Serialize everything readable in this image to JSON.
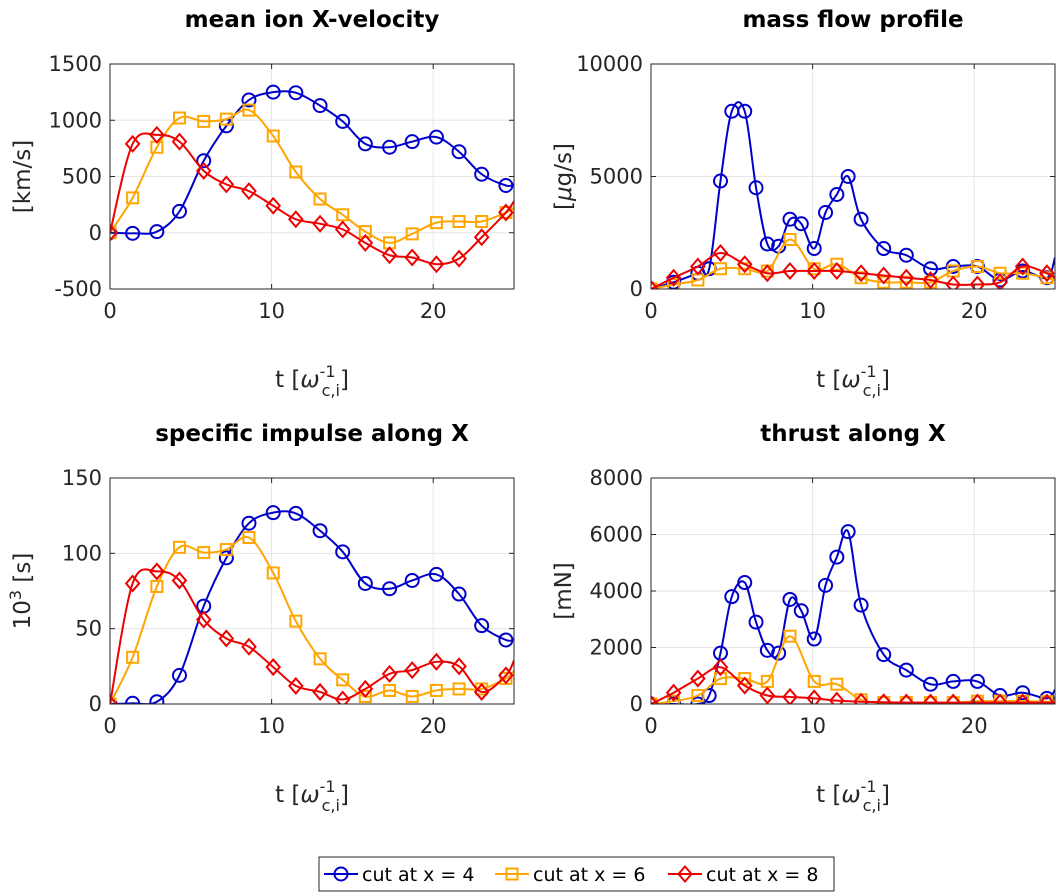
{
  "chart_data": [
    {
      "type": "line",
      "title": "mean ion X-velocity",
      "xlabel": "t [ω₋₁c,i]",
      "xlabel_parts": {
        "main": "t [",
        "symbol": "ω",
        "sup": "-1",
        "sub": "c,i",
        "close": "]"
      },
      "ylabel": "[km/s]",
      "xlim": [
        0,
        25
      ],
      "ylim": [
        -500,
        1500
      ],
      "xticks": [
        0,
        10,
        20
      ],
      "xtick_labels": [
        "0",
        "10",
        "20"
      ],
      "yticks": [
        -500,
        0,
        500,
        1000,
        1500
      ],
      "ytick_labels": [
        "-500",
        "0",
        "500",
        "1000",
        "1500"
      ],
      "grid": true,
      "series": [
        {
          "name": "cut at x = 4",
          "color": "#0000cc",
          "marker": "circle",
          "x": [
            0,
            1.4,
            2.9,
            4.3,
            5.8,
            7.2,
            8.6,
            10.1,
            11.5,
            13.0,
            14.4,
            15.8,
            17.3,
            18.7,
            20.2,
            21.6,
            23.0,
            24.5,
            25
          ],
          "y": [
            0,
            -5,
            10,
            190,
            640,
            950,
            1180,
            1250,
            1245,
            1130,
            990,
            790,
            760,
            810,
            850,
            720,
            520,
            420,
            430
          ]
        },
        {
          "name": "cut at x = 6",
          "color": "#ffa500",
          "marker": "square",
          "x": [
            0,
            1.4,
            2.9,
            4.3,
            5.8,
            7.2,
            8.6,
            10.1,
            11.5,
            13.0,
            14.4,
            15.8,
            17.3,
            18.7,
            20.2,
            21.6,
            23.0,
            24.5,
            25
          ],
          "y": [
            0,
            310,
            760,
            1020,
            990,
            1010,
            1090,
            860,
            540,
            300,
            160,
            10,
            -90,
            -10,
            90,
            100,
            100,
            180,
            220
          ]
        },
        {
          "name": "cut at x = 8",
          "color": "#ee0000",
          "marker": "diamond",
          "x": [
            0,
            1.4,
            2.9,
            4.3,
            5.8,
            7.2,
            8.6,
            10.1,
            11.5,
            13.0,
            14.4,
            15.8,
            17.3,
            18.7,
            20.2,
            21.6,
            23.0,
            24.5,
            25
          ],
          "y": [
            0,
            790,
            870,
            810,
            550,
            430,
            370,
            240,
            120,
            80,
            30,
            -90,
            -200,
            -220,
            -280,
            -230,
            -40,
            180,
            280
          ]
        }
      ]
    },
    {
      "type": "line",
      "title": "mass flow profile",
      "ylabel": "[μg/s]",
      "ylabel_parts": {
        "open": "[",
        "symbol": "μ",
        "rest": "g/s]"
      },
      "xlim": [
        0,
        25
      ],
      "ylim": [
        0,
        10000
      ],
      "xticks": [
        0,
        10,
        20
      ],
      "xtick_labels": [
        "0",
        "10",
        "20"
      ],
      "yticks": [
        0,
        5000,
        10000
      ],
      "ytick_labels": [
        "0",
        "5000",
        "10000"
      ],
      "grid": true,
      "series": [
        {
          "name": "cut at x = 4",
          "color": "#0000cc",
          "marker": "circle",
          "x": [
            0,
            1.4,
            2.9,
            3.6,
            4.3,
            5.0,
            5.8,
            6.5,
            7.2,
            7.9,
            8.6,
            9.3,
            10.1,
            10.8,
            11.5,
            12.2,
            13.0,
            14.4,
            15.8,
            17.3,
            18.7,
            20.2,
            21.6,
            23.0,
            24.5,
            25
          ],
          "y": [
            0,
            300,
            700,
            900,
            4800,
            7900,
            7900,
            4500,
            2000,
            1900,
            3100,
            2900,
            1800,
            3400,
            4200,
            5000,
            3100,
            1800,
            1500,
            900,
            1000,
            1000,
            400,
            800,
            500,
            1400
          ]
        },
        {
          "name": "cut at x = 6",
          "color": "#ffa500",
          "marker": "square",
          "x": [
            0,
            1.4,
            2.9,
            4.3,
            5.8,
            7.2,
            8.6,
            10.1,
            11.5,
            13.0,
            14.4,
            15.8,
            17.3,
            18.7,
            20.2,
            21.6,
            23.0,
            24.5,
            25
          ],
          "y": [
            0,
            200,
            400,
            900,
            900,
            800,
            2200,
            900,
            1100,
            500,
            300,
            300,
            300,
            800,
            1000,
            700,
            700,
            500,
            400
          ]
        },
        {
          "name": "cut at x = 8",
          "color": "#ee0000",
          "marker": "diamond",
          "x": [
            0,
            1.4,
            2.9,
            4.3,
            5.8,
            7.2,
            8.6,
            10.1,
            11.5,
            13.0,
            14.4,
            15.8,
            17.3,
            18.7,
            20.2,
            21.6,
            23.0,
            24.5,
            25
          ],
          "y": [
            0,
            500,
            1000,
            1600,
            1100,
            700,
            800,
            800,
            800,
            700,
            600,
            500,
            400,
            200,
            200,
            300,
            1000,
            700,
            500
          ]
        }
      ]
    },
    {
      "type": "line",
      "title": "specific impulse along X",
      "ylabel": "10³ [s]",
      "ylabel_parts": {
        "base": "10",
        "sup": "3",
        "rest": " [s]"
      },
      "xlim": [
        0,
        25
      ],
      "ylim": [
        0,
        150
      ],
      "xticks": [
        0,
        10,
        20
      ],
      "xtick_labels": [
        "0",
        "10",
        "20"
      ],
      "yticks": [
        0,
        50,
        100,
        150
      ],
      "ytick_labels": [
        "0",
        "50",
        "100",
        "150"
      ],
      "grid": true,
      "series": [
        {
          "name": "cut at x = 4",
          "color": "#0000cc",
          "marker": "circle",
          "x": [
            0,
            1.4,
            2.9,
            4.3,
            5.8,
            7.2,
            8.6,
            10.1,
            11.5,
            13.0,
            14.4,
            15.8,
            17.3,
            18.7,
            20.2,
            21.6,
            23.0,
            24.5,
            25
          ],
          "y": [
            0,
            0.5,
            1.5,
            19,
            65,
            97,
            120,
            127,
            126.5,
            115,
            101,
            80,
            76.5,
            82,
            86,
            73,
            52,
            42.5,
            43
          ]
        },
        {
          "name": "cut at x = 6",
          "color": "#ffa500",
          "marker": "square",
          "x": [
            0,
            1.4,
            2.9,
            4.3,
            5.8,
            7.2,
            8.6,
            10.1,
            11.5,
            13.0,
            14.4,
            15.8,
            17.3,
            18.7,
            20.2,
            21.6,
            23.0,
            24.5,
            25
          ],
          "y": [
            0,
            31,
            78,
            104,
            100.5,
            102.5,
            110.5,
            87,
            55,
            30,
            16,
            5,
            9,
            5,
            9,
            10,
            10,
            17,
            22
          ]
        },
        {
          "name": "cut at x = 8",
          "color": "#ee0000",
          "marker": "diamond",
          "x": [
            0,
            1.4,
            2.9,
            4.3,
            5.8,
            7.2,
            8.6,
            10.1,
            11.5,
            13.0,
            14.4,
            15.8,
            17.3,
            18.7,
            20.2,
            21.6,
            23.0,
            24.5,
            25
          ],
          "y": [
            0,
            80,
            88,
            82,
            56,
            43.5,
            38,
            24.5,
            12,
            8,
            3,
            10,
            20,
            22.5,
            28,
            25,
            8,
            19,
            29
          ]
        }
      ]
    },
    {
      "type": "line",
      "title": "thrust along X",
      "ylabel": "[mN]",
      "xlim": [
        0,
        25
      ],
      "ylim": [
        0,
        8000
      ],
      "xticks": [
        0,
        10,
        20
      ],
      "xtick_labels": [
        "0",
        "10",
        "20"
      ],
      "yticks": [
        0,
        2000,
        4000,
        6000,
        8000
      ],
      "ytick_labels": [
        "0",
        "2000",
        "4000",
        "6000",
        "8000"
      ],
      "grid": true,
      "series": [
        {
          "name": "cut at x = 4",
          "color": "#0000cc",
          "marker": "circle",
          "x": [
            0,
            1.4,
            2.9,
            3.6,
            4.3,
            5.0,
            5.8,
            6.5,
            7.2,
            7.9,
            8.6,
            9.3,
            10.1,
            10.8,
            11.5,
            12.2,
            13.0,
            14.4,
            15.8,
            17.3,
            18.7,
            20.2,
            21.6,
            23.0,
            24.5,
            25
          ],
          "y": [
            0,
            0,
            0,
            300,
            1800,
            3800,
            4300,
            2900,
            1900,
            1800,
            3700,
            3300,
            2300,
            4200,
            5200,
            6100,
            3500,
            1750,
            1200,
            700,
            800,
            800,
            300,
            400,
            200,
            500
          ]
        },
        {
          "name": "cut at x = 6",
          "color": "#ffa500",
          "marker": "square",
          "x": [
            0,
            1.4,
            2.9,
            4.3,
            5.8,
            7.2,
            8.6,
            10.1,
            11.5,
            13.0,
            14.4,
            15.8,
            17.3,
            18.7,
            20.2,
            21.6,
            23.0,
            24.5,
            25
          ],
          "y": [
            0,
            100,
            300,
            900,
            900,
            800,
            2400,
            800,
            700,
            150,
            50,
            50,
            50,
            50,
            100,
            100,
            100,
            80,
            80
          ]
        },
        {
          "name": "cut at x = 8",
          "color": "#ee0000",
          "marker": "diamond",
          "x": [
            0,
            1.4,
            2.9,
            4.3,
            5.8,
            7.2,
            8.6,
            10.1,
            11.5,
            13.0,
            14.4,
            15.8,
            17.3,
            18.7,
            20.2,
            21.6,
            23.0,
            24.5,
            25
          ],
          "y": [
            0,
            400,
            900,
            1300,
            650,
            300,
            250,
            200,
            120,
            80,
            60,
            50,
            50,
            50,
            50,
            50,
            50,
            50,
            50
          ]
        }
      ]
    }
  ],
  "legend": {
    "placement": "bottom-center",
    "entries": [
      {
        "label": "cut at x = 4",
        "color": "#0000cc",
        "marker": "circle"
      },
      {
        "label": "cut at x = 6",
        "color": "#ffa500",
        "marker": "square"
      },
      {
        "label": "cut at x = 8",
        "color": "#ee0000",
        "marker": "diamond"
      }
    ]
  }
}
